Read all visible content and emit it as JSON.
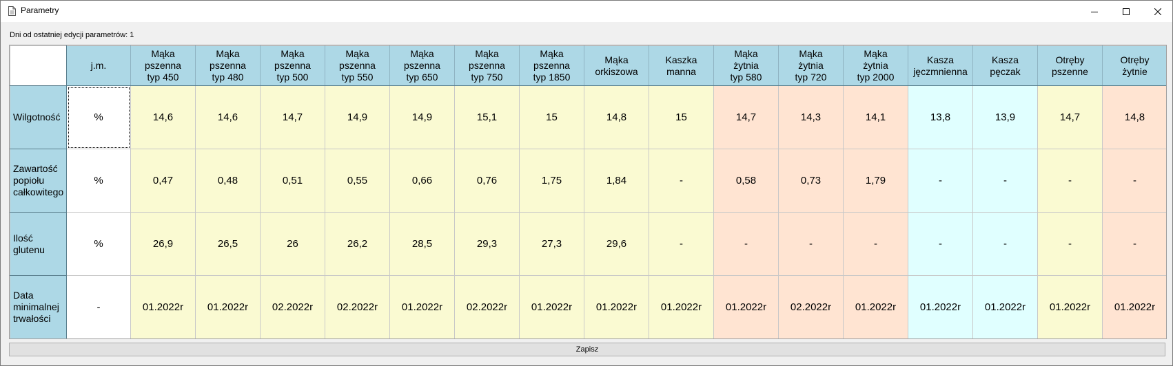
{
  "window": {
    "title": "Parametry",
    "icon": "document-icon",
    "controls": [
      "minimize-icon",
      "maximize-icon",
      "close-icon"
    ]
  },
  "info_label": "Dni od ostatniej edycji parametrów: 1",
  "grid": {
    "unit_header": "j.m.",
    "columns": [
      {
        "label": "Mąka\npszenna\ntyp 450",
        "group": "yellow"
      },
      {
        "label": "Mąka\npszenna\ntyp 480",
        "group": "yellow"
      },
      {
        "label": "Mąka\npszenna\ntyp 500",
        "group": "yellow"
      },
      {
        "label": "Mąka\npszenna\ntyp 550",
        "group": "yellow"
      },
      {
        "label": "Mąka\npszenna\ntyp 650",
        "group": "yellow"
      },
      {
        "label": "Mąka\npszenna\ntyp 750",
        "group": "yellow"
      },
      {
        "label": "Mąka\npszenna\ntyp 1850",
        "group": "yellow"
      },
      {
        "label": "Mąka\norkiszowa",
        "group": "yellow"
      },
      {
        "label": "Kaszka\nmanna",
        "group": "yellow"
      },
      {
        "label": "Mąka\nżytnia\ntyp 580",
        "group": "salmon"
      },
      {
        "label": "Mąka\nżytnia\ntyp 720",
        "group": "salmon"
      },
      {
        "label": "Mąka\nżytnia\ntyp 2000",
        "group": "salmon"
      },
      {
        "label": "Kasza\njęczmnienna",
        "group": "cyan"
      },
      {
        "label": "Kasza\npęczak",
        "group": "cyan"
      },
      {
        "label": "Otręby\npszenne",
        "group": "yellow"
      },
      {
        "label": "Otręby\nżytnie",
        "group": "salmon"
      }
    ],
    "rows": [
      {
        "label": "Wilgotność",
        "unit": "%",
        "values": [
          "14,6",
          "14,6",
          "14,7",
          "14,9",
          "14,9",
          "15,1",
          "15",
          "14,8",
          "15",
          "14,7",
          "14,3",
          "14,1",
          "13,8",
          "13,9",
          "14,7",
          "14,8"
        ]
      },
      {
        "label": "Zawartość\npopiołu\ncałkowitego",
        "unit": "%",
        "values": [
          "0,47",
          "0,48",
          "0,51",
          "0,55",
          "0,66",
          "0,76",
          "1,75",
          "1,84",
          "-",
          "0,58",
          "0,73",
          "1,79",
          "-",
          "-",
          "-",
          "-"
        ]
      },
      {
        "label": "Ilość\nglutenu",
        "unit": "%",
        "values": [
          "26,9",
          "26,5",
          "26",
          "26,2",
          "28,5",
          "29,3",
          "27,3",
          "29,6",
          "-",
          "-",
          "-",
          "-",
          "-",
          "-",
          "-",
          "-"
        ]
      },
      {
        "label": "Data\nminimalnej\ntrwałości",
        "unit": "-",
        "values": [
          "01.2022r",
          "01.2022r",
          "02.2022r",
          "02.2022r",
          "01.2022r",
          "02.2022r",
          "01.2022r",
          "01.2022r",
          "01.2022r",
          "01.2022r",
          "02.2022r",
          "01.2022r",
          "01.2022r",
          "01.2022r",
          "01.2022r",
          "01.2022r"
        ]
      }
    ]
  },
  "save_button": "Zapisz",
  "colors": {
    "header": "#add8e6",
    "yellow": "#fafad2",
    "salmon": "#ffe4d2",
    "cyan": "#e0ffff"
  }
}
